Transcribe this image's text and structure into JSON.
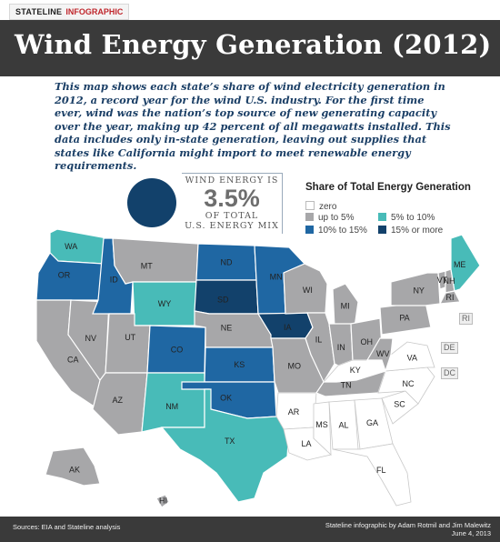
{
  "header": {
    "brand": "STATELINE",
    "sub": "INFOGRAPHIC"
  },
  "title": "Wind Energy Generation (2012)",
  "intro": "This map shows each state’s share of wind electricity generation in 2012, a record year for the wind U.S. industry. For the first time ever, wind was the nation’s top source of new generating capacity over the year, making up 42 percent of all megawatts installed. This data includes only in-state generation, leaving out supplies that states like California might import to meet renewable energy requirements.",
  "stat": {
    "top": "WIND ENERGY IS",
    "value": "3.5%",
    "line1": "OF TOTAL",
    "line2": "U.S. ENERGY MIX"
  },
  "legend": {
    "title": "Share of Total Energy Generation",
    "items": [
      {
        "label": "zero",
        "color": "#ffffff"
      },
      {
        "label": "up to 5%",
        "color": "#a7a7a9"
      },
      {
        "label": "5% to 10%",
        "color": "#48bbb8"
      },
      {
        "label": "10% to 15%",
        "color": "#1f67a3"
      },
      {
        "label": "15% or more",
        "color": "#12416b"
      }
    ]
  },
  "states": {
    "WA": {
      "label": "WA",
      "category": "5% to 10%"
    },
    "OR": {
      "label": "OR",
      "category": "10% to 15%"
    },
    "CA": {
      "label": "CA",
      "category": "up to 5%"
    },
    "NV": {
      "label": "NV",
      "category": "up to 5%"
    },
    "ID": {
      "label": "ID",
      "category": "10% to 15%"
    },
    "MT": {
      "label": "MT",
      "category": "up to 5%"
    },
    "WY": {
      "label": "WY",
      "category": "5% to 10%"
    },
    "UT": {
      "label": "UT",
      "category": "up to 5%"
    },
    "AZ": {
      "label": "AZ",
      "category": "up to 5%"
    },
    "CO": {
      "label": "CO",
      "category": "10% to 15%"
    },
    "NM": {
      "label": "NM",
      "category": "5% to 10%"
    },
    "ND": {
      "label": "ND",
      "category": "10% to 15%"
    },
    "SD": {
      "label": "SD",
      "category": "15% or more"
    },
    "NE": {
      "label": "NE",
      "category": "up to 5%"
    },
    "KS": {
      "label": "KS",
      "category": "10% to 15%"
    },
    "OK": {
      "label": "OK",
      "category": "10% to 15%"
    },
    "TX": {
      "label": "TX",
      "category": "5% to 10%"
    },
    "MN": {
      "label": "MN",
      "category": "10% to 15%"
    },
    "IA": {
      "label": "IA",
      "category": "15% or more"
    },
    "MO": {
      "label": "MO",
      "category": "up to 5%"
    },
    "AR": {
      "label": "AR",
      "category": "zero"
    },
    "LA": {
      "label": "LA",
      "category": "zero"
    },
    "WI": {
      "label": "WI",
      "category": "up to 5%"
    },
    "IL": {
      "label": "IL",
      "category": "up to 5%"
    },
    "MI": {
      "label": "MI",
      "category": "up to 5%"
    },
    "IN": {
      "label": "IN",
      "category": "up to 5%"
    },
    "OH": {
      "label": "OH",
      "category": "up to 5%"
    },
    "KY": {
      "label": "KY",
      "category": "zero"
    },
    "TN": {
      "label": "TN",
      "category": "up to 5%"
    },
    "MS": {
      "label": "MS",
      "category": "zero"
    },
    "AL": {
      "label": "AL",
      "category": "zero"
    },
    "GA": {
      "label": "GA",
      "category": "zero"
    },
    "FL": {
      "label": "FL",
      "category": "zero"
    },
    "SC": {
      "label": "SC",
      "category": "zero"
    },
    "NC": {
      "label": "NC",
      "category": "zero"
    },
    "VA": {
      "label": "VA",
      "category": "zero"
    },
    "WV": {
      "label": "WV",
      "category": "up to 5%"
    },
    "PA": {
      "label": "PA",
      "category": "up to 5%"
    },
    "NY": {
      "label": "NY",
      "category": "up to 5%"
    },
    "VT": {
      "label": "VT",
      "category": "up to 5%"
    },
    "NH": {
      "label": "NH",
      "category": "up to 5%"
    },
    "ME": {
      "label": "ME",
      "category": "5% to 10%"
    },
    "AK": {
      "label": "AK",
      "category": "up to 5%"
    },
    "HI": {
      "label": "HI",
      "category": "up to 5%"
    },
    "RI": {
      "label": "RI",
      "category": "up to 5%"
    },
    "DE": {
      "label": "DE",
      "category": "up to 5%"
    },
    "DC": {
      "label": "DC",
      "category": "zero"
    }
  },
  "footer": {
    "sources": "Sources: EIA and Stateline analysis",
    "credit_line1": "Stateline infographic by Adam Rotmil and Jim Malewitz",
    "credit_line2": "June 4, 2013"
  }
}
